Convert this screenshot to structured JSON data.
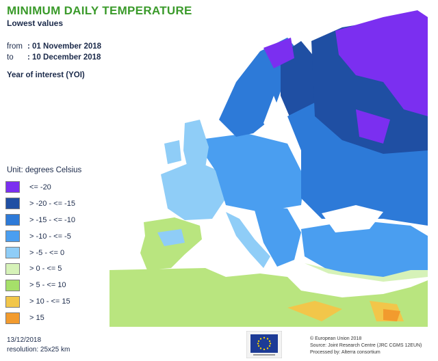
{
  "header": {
    "title": "MINIMUM DAILY TEMPERATURE",
    "subtitle": "Lowest values",
    "from_label": "from",
    "from_value": ": 01 November 2018",
    "to_label": "to",
    "to_value": ": 10 December 2018",
    "yoi": "Year of interest (YOI)"
  },
  "legend": {
    "unit": "Unit: degrees Celsius",
    "items": [
      {
        "label": "<= -20",
        "color": "#7b2ff0"
      },
      {
        "label": "> -20 - <= -15",
        "color": "#1f4fa3"
      },
      {
        "label": "> -15 - <= -10",
        "color": "#2d7ad8"
      },
      {
        "label": "> -10 - <= -5",
        "color": "#4a9ef0"
      },
      {
        "label": "> -5 - <= 0",
        "color": "#8fcdf7"
      },
      {
        "label": "> 0 - <= 5",
        "color": "#d6f2b8"
      },
      {
        "label": "> 5 - <= 10",
        "color": "#a6e06a"
      },
      {
        "label": "> 10 - <= 15",
        "color": "#f2c64a"
      },
      {
        "label": "> 15",
        "color": "#f29b2e"
      }
    ]
  },
  "footer": {
    "date": "13/12/2018",
    "resolution": "resolution: 25x25 km",
    "credit_line1": "© European Union 2018",
    "credit_line2": "Source: Joint Research Centre (JRC CGMS 12EUN)",
    "credit_line3": "Processed by: Alterra consortium"
  }
}
